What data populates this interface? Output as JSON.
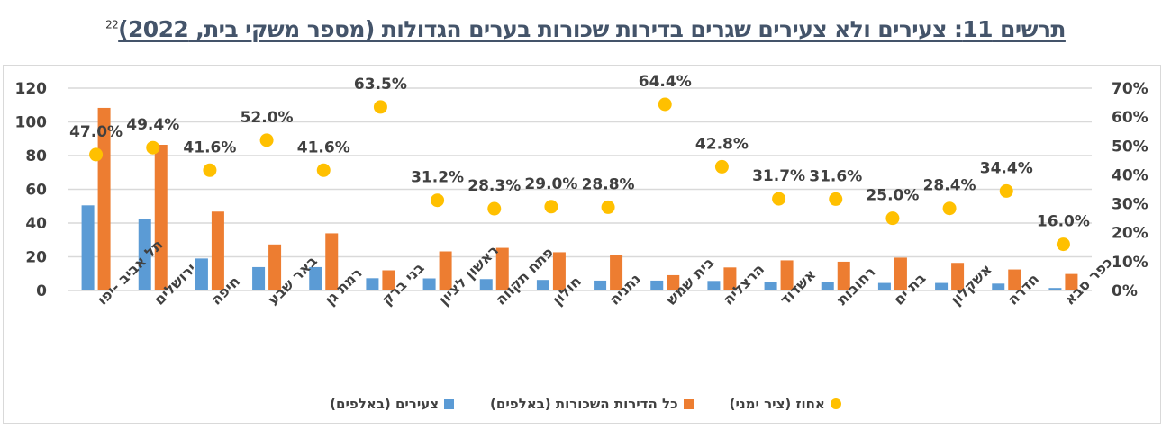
{
  "title": {
    "text": "תרשים 11: צעירים ולא צעירים שגרים בדירות שכורות בערים הגדולות (מספר משקי בית, 2022)",
    "footnote": "22"
  },
  "colors": {
    "young": "#5B9BD5",
    "all_rented": "#ED7D31",
    "percent": "#FFC000",
    "grid": "#D9D9D9",
    "text": "#404040",
    "title": "#44546A"
  },
  "chart_data": {
    "type": "bar",
    "title": "תרשים 11: צעירים ולא צעירים שגרים בדירות שכורות בערים הגדולות (מספר משקי בית, 2022)",
    "xlabel": "",
    "ylabel": "",
    "categories": [
      "תל אביב -יפו",
      "ירושלים",
      "חיפה",
      "באר שבע",
      "רמת גן",
      "בני ברק",
      "ראשון לציון",
      "פתח תקווה",
      "חולון",
      "נתניה",
      "בית שמש",
      "הרצליה",
      "אשדוד",
      "רחובות",
      "בת ים",
      "אשקלון",
      "חדרה",
      "כפר סבא"
    ],
    "series": [
      {
        "name": "צעירים (באלפים)",
        "type": "bar",
        "axis": "left",
        "values": [
          50.5,
          42.3,
          19.0,
          13.9,
          13.9,
          7.3,
          7.2,
          6.8,
          6.3,
          5.9,
          5.9,
          5.7,
          5.3,
          5.0,
          4.5,
          4.5,
          4.1,
          1.5
        ]
      },
      {
        "name": "כל הדירות השכורות (באלפים)",
        "type": "bar",
        "axis": "left",
        "values": [
          108.3,
          86.4,
          46.8,
          27.3,
          33.9,
          12.0,
          23.2,
          25.3,
          22.7,
          21.1,
          9.1,
          13.7,
          17.9,
          17.1,
          19.5,
          16.4,
          12.5,
          9.8
        ]
      },
      {
        "name": "אחוז (ציר ימני)",
        "type": "scatter",
        "axis": "right",
        "values": [
          47.0,
          49.4,
          41.6,
          52.0,
          41.6,
          63.5,
          31.2,
          28.3,
          29.0,
          28.8,
          64.4,
          42.8,
          31.7,
          31.6,
          25.0,
          28.4,
          34.4,
          16.0
        ]
      }
    ],
    "percent_labels": [
      "47.0%",
      "49.4%",
      "41.6%",
      "52.0%",
      "41.6%",
      "63.5%",
      "31.2%",
      "28.3%",
      "29.0%",
      "28.8%",
      "64.4%",
      "42.8%",
      "31.7%",
      "31.6%",
      "25.0%",
      "28.4%",
      "34.4%",
      "16.0%"
    ],
    "y_left": {
      "min": 0,
      "max": 120,
      "ticks": [
        0,
        20,
        40,
        60,
        80,
        100,
        120
      ],
      "tick_labels": [
        "0",
        "20",
        "40",
        "60",
        "80",
        "100",
        "120"
      ]
    },
    "y_right": {
      "min": 0,
      "max": 70,
      "ticks": [
        0,
        10,
        20,
        30,
        40,
        50,
        60,
        70
      ],
      "tick_labels": [
        "0%",
        "10%",
        "20%",
        "30%",
        "40%",
        "50%",
        "60%",
        "70%"
      ]
    },
    "grid": true,
    "legend_position": "bottom"
  },
  "legend": [
    {
      "label": "אחוז (ציר ימני)",
      "shape": "circle",
      "color": "#FFC000"
    },
    {
      "label": "כל הדירות השכורות (באלפים)",
      "shape": "square",
      "color": "#ED7D31"
    },
    {
      "label": "צעירים (באלפים)",
      "shape": "square",
      "color": "#5B9BD5"
    }
  ]
}
